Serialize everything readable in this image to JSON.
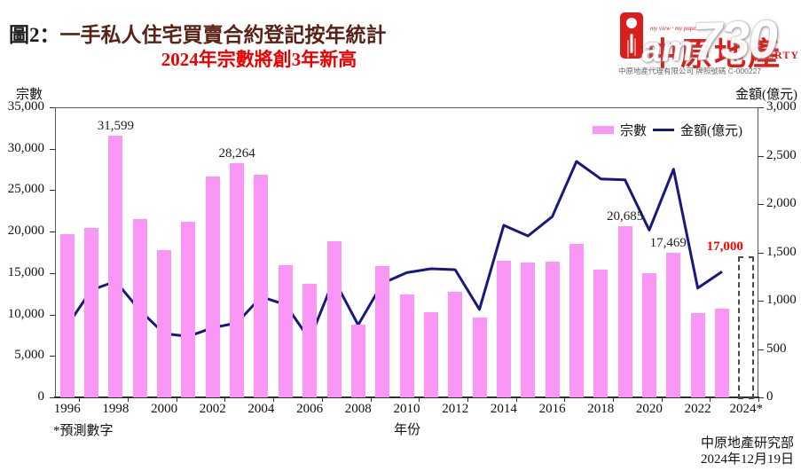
{
  "header": {
    "title_prefix": "圖2：",
    "title_main": "一手私人住宅買賣合約登記按年統計",
    "subtitle": "2024年宗數將創3年新高"
  },
  "logo": {
    "brand": "中原地產",
    "property_text": "PERTY",
    "tagline": "my view · my paper",
    "watermark_prefix": "am",
    "watermark_number": "730",
    "licence": "中原地產代理有限公司  牌照號碼 C-000227"
  },
  "colors": {
    "bar": "#FA96F5",
    "line": "#181880",
    "subtitle_red": "#EE0000",
    "forecast_label_red": "#FF0000",
    "brand_red": "#D7201D",
    "title_maroon": "#5A2216"
  },
  "chart_data": {
    "type": "bar+line combo",
    "title": "一手私人住宅買賣合約登記按年統計",
    "subtitle": "2024年宗數將創3年新高",
    "grid": false,
    "legend_position": "top-right-inside",
    "years": [
      "1996",
      "1997",
      "1998",
      "1999",
      "2000",
      "2001",
      "2002",
      "2003",
      "2004",
      "2005",
      "2006",
      "2007",
      "2008",
      "2009",
      "2010",
      "2011",
      "2012",
      "2013",
      "2014",
      "2015",
      "2016",
      "2017",
      "2018",
      "2019",
      "2020",
      "2021",
      "2022",
      "2023",
      "2024*"
    ],
    "left_axis": {
      "label": "宗數",
      "min": 0,
      "max": 35000,
      "step": 5000,
      "tick_labels": [
        "0",
        "5,000",
        "10,000",
        "15,000",
        "20,000",
        "25,000",
        "30,000",
        "35,000"
      ]
    },
    "right_axis": {
      "label": "金額(億元)",
      "min": 0,
      "max": 3000,
      "step": 500,
      "tick_labels": [
        "0",
        "500",
        "1,000",
        "1,500",
        "2,000",
        "2,500",
        "3,000"
      ]
    },
    "x_axis": {
      "label": "年份",
      "tick_labels": [
        "1996",
        "1998",
        "2000",
        "2002",
        "2004",
        "2006",
        "2008",
        "2010",
        "2012",
        "2014",
        "2016",
        "2018",
        "2020",
        "2022",
        "2024*"
      ]
    },
    "series": [
      {
        "name": "宗數",
        "type": "bar",
        "axis": "left",
        "color": "#FA96F5",
        "values": [
          19700,
          20400,
          31599,
          21500,
          17800,
          21200,
          26700,
          28264,
          26900,
          15900,
          13700,
          18800,
          8800,
          15800,
          12400,
          10300,
          12700,
          9600,
          16500,
          16300,
          16400,
          18500,
          15400,
          20685,
          15000,
          17469,
          10200,
          10700,
          17000
        ]
      },
      {
        "name": "金額(億元)",
        "type": "line",
        "axis": "right",
        "color": "#181880",
        "values": [
          740,
          1110,
          1200,
          900,
          660,
          630,
          720,
          770,
          1040,
          960,
          600,
          1220,
          750,
          1180,
          1290,
          1330,
          1320,
          910,
          1780,
          1670,
          1870,
          2440,
          2260,
          2250,
          1730,
          2360,
          1130,
          1300,
          null
        ]
      }
    ],
    "forecast_year": "2024*",
    "annotations": [
      {
        "year": "1998",
        "text": "31,599",
        "emphasis": false
      },
      {
        "year": "2003",
        "text": "28,264",
        "emphasis": false
      },
      {
        "year": "2019",
        "text": "20,685",
        "emphasis": false
      },
      {
        "year": "2021",
        "text": "17,469",
        "emphasis": false
      },
      {
        "year": "2024*",
        "text": "17,000",
        "emphasis": true
      }
    ],
    "legend": [
      {
        "label": "宗數"
      },
      {
        "label": "金額(億元)"
      }
    ]
  },
  "footer": {
    "footnote": "*預測數字",
    "source_org": "中原地產研究部",
    "source_date": "2024年12月19日"
  }
}
